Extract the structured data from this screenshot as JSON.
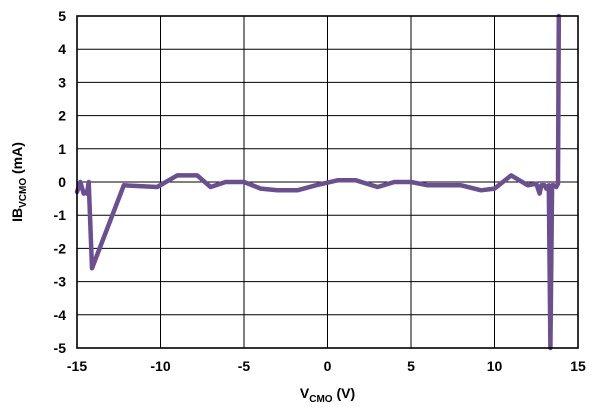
{
  "chart_data": {
    "type": "line",
    "xlabel": {
      "main": "V",
      "sub": "CMO",
      "suffix": " (V)"
    },
    "ylabel": {
      "main": "IB",
      "sub": "VCMO",
      "suffix": " (mA)"
    },
    "xlim": [
      -15,
      15
    ],
    "ylim": [
      -5,
      5
    ],
    "x_ticks": [
      -15,
      -10,
      -5,
      0,
      5,
      10,
      15
    ],
    "y_ticks": [
      5,
      4,
      3,
      2,
      1,
      0,
      -1,
      -2,
      -3,
      -4,
      -5
    ],
    "grid": true,
    "line_color": "#6b4f91",
    "series": [
      {
        "x": [
          -15.0,
          -14.8,
          -14.6,
          -14.5,
          -14.4,
          -14.3,
          -14.1,
          -12.2,
          -10.2,
          -9.0,
          -7.8,
          -7.0,
          -6.1,
          -5.0,
          -4.0,
          -3.0,
          -1.8,
          -0.7,
          0.6,
          1.7,
          3.0,
          4.0,
          5.0,
          6.0,
          7.2,
          8.0,
          9.2,
          10.0,
          11.0,
          12.0,
          12.5,
          12.7,
          12.8,
          13.0,
          13.1,
          13.25,
          13.35,
          13.45,
          13.55,
          13.7,
          13.8,
          13.85
        ],
        "y": [
          -0.3,
          0.0,
          -0.35,
          -0.3,
          -0.35,
          0.0,
          -2.6,
          -0.1,
          -0.15,
          0.2,
          0.2,
          -0.15,
          0.0,
          0.0,
          -0.2,
          -0.25,
          -0.25,
          -0.1,
          0.05,
          0.05,
          -0.15,
          0.0,
          0.0,
          -0.1,
          -0.1,
          -0.1,
          -0.25,
          -0.2,
          0.2,
          -0.1,
          -0.05,
          -0.35,
          -0.1,
          -0.1,
          -0.2,
          -0.1,
          -5.0,
          -0.1,
          -0.1,
          -0.15,
          -0.05,
          5.0
        ]
      }
    ]
  }
}
